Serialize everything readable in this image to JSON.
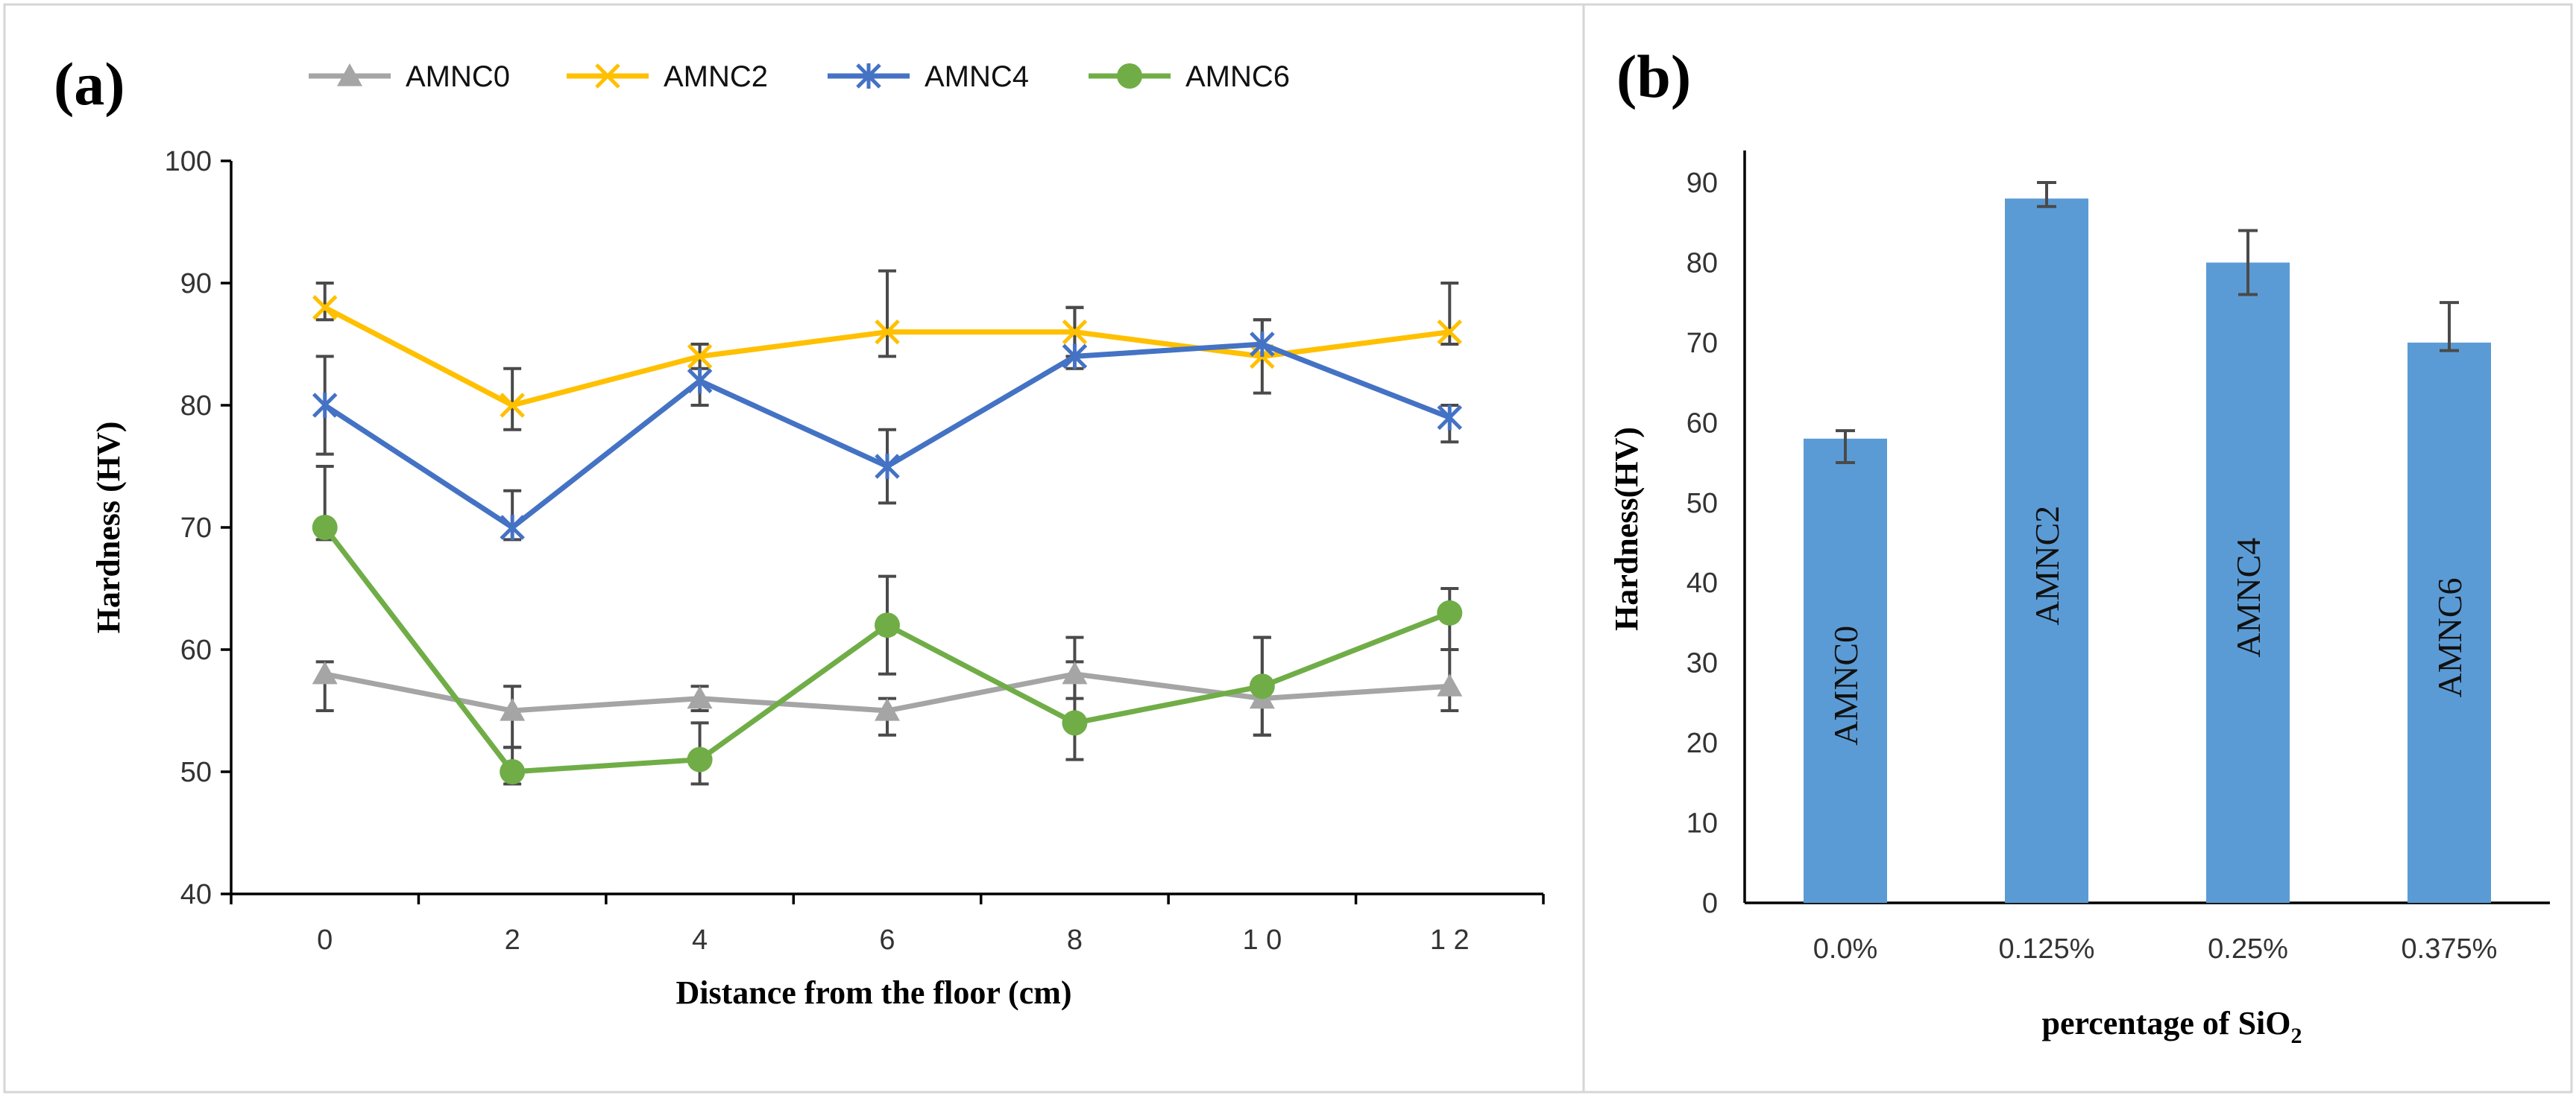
{
  "panels": {
    "a": {
      "label": "(a)",
      "chart_data": {
        "type": "line",
        "title": "",
        "xlabel": "Distance from  the floor (cm)",
        "ylabel": "Hardness (HV)",
        "x": [
          0,
          2,
          4,
          6,
          8,
          10,
          12
        ],
        "x_tick_labels": [
          "0",
          "2",
          "4",
          "6",
          "8",
          "1 0",
          "1 2"
        ],
        "ylim": [
          40,
          100
        ],
        "y_ticks": [
          40,
          50,
          60,
          70,
          80,
          90,
          100
        ],
        "y_tick_labels": [
          "40",
          "50",
          "60",
          "70",
          "80",
          "90",
          "100"
        ],
        "legend_position": "top",
        "series": [
          {
            "name": "AMNC0",
            "color": "#a5a5a5",
            "marker": "triangle",
            "values": [
              58,
              55,
              56,
              55,
              58,
              56,
              57
            ],
            "err_plus": [
              1,
              2,
              1,
              1,
              3,
              5,
              3
            ],
            "err_minus": [
              3,
              3,
              1,
              2,
              2,
              3,
              2
            ]
          },
          {
            "name": "AMNC2",
            "color": "#ffc000",
            "marker": "x",
            "values": [
              88,
              80,
              84,
              86,
              86,
              84,
              86
            ],
            "err_plus": [
              2,
              3,
              1,
              5,
              2,
              3,
              4
            ],
            "err_minus": [
              1,
              2,
              1,
              2,
              2,
              3,
              1
            ]
          },
          {
            "name": "AMNC4",
            "color": "#4472c4",
            "marker": "star",
            "values": [
              80,
              70,
              82,
              75,
              84,
              85,
              79
            ],
            "err_plus": [
              4,
              3,
              3,
              3,
              4,
              2,
              1
            ],
            "err_minus": [
              4,
              1,
              2,
              3,
              1,
              1,
              2
            ]
          },
          {
            "name": "AMNC6",
            "color": "#70ad47",
            "marker": "circle",
            "values": [
              70,
              50,
              51,
              62,
              54,
              57,
              63
            ],
            "err_plus": [
              5,
              2,
              3,
              4,
              5,
              4,
              2
            ],
            "err_minus": [
              1,
              1,
              2,
              4,
              3,
              4,
              3
            ]
          }
        ]
      }
    },
    "b": {
      "label": "(b)",
      "chart_data": {
        "type": "bar",
        "title": "",
        "xlabel_main": "percentage of SiO",
        "xlabel_sub": "2",
        "ylabel": "Hardness(HV)",
        "categories": [
          "0.0%",
          "0.125%",
          "0.25%",
          "0.375%"
        ],
        "bar_labels": [
          "AMNC0",
          "AMNC2",
          "AMNC4",
          "AMNC6"
        ],
        "values": [
          58,
          88,
          80,
          70
        ],
        "err_plus": [
          1,
          2,
          4,
          5
        ],
        "err_minus": [
          3,
          1,
          4,
          1
        ],
        "ylim": [
          0,
          94
        ],
        "y_ticks": [
          0,
          10,
          20,
          30,
          40,
          50,
          60,
          70,
          80,
          90
        ],
        "y_tick_labels": [
          "0",
          "10",
          "20",
          "30",
          "40",
          "50",
          "60",
          "70",
          "80",
          "90"
        ],
        "bar_color": "#5b9bd5"
      }
    }
  }
}
